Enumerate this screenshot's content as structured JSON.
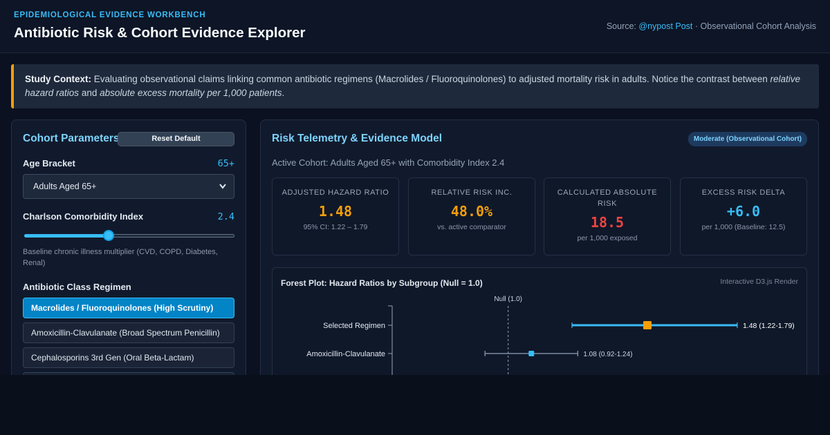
{
  "header": {
    "eyebrow": "EPIDEMIOLOGICAL EVIDENCE WORKBENCH",
    "title": "Antibiotic Risk & Cohort Evidence Explorer",
    "source_prefix": "Source:",
    "source_handle": "@nypost Post",
    "source_suffix": "· Observational Cohort Analysis"
  },
  "context": {
    "label": "Study Context:",
    "text_1": "Evaluating observational claims linking common antibiotic regimens (Macrolides / Fluoroquinolones) to adjusted mortality risk in adults. Notice the contrast between",
    "em_1": "relative hazard ratios",
    "text_2": "and",
    "em_2": "absolute excess mortality per 1,000 patients",
    "text_3": "."
  },
  "params": {
    "title": "Cohort Parameters",
    "reset_label": "Reset Default",
    "age": {
      "label": "Age Bracket",
      "value": "65+",
      "selected": "Adults Aged 65+"
    },
    "comorbidity": {
      "label": "Charlson Comorbidity Index",
      "value_text": "2.4",
      "slider_fraction": 0.4,
      "hint": "Baseline chronic illness multiplier (CVD, COPD, Diabetes, Renal)"
    },
    "regimen": {
      "label": "Antibiotic Class Regimen",
      "options": [
        "Macrolides / Fluoroquinolones (High Scrutiny)",
        "Amoxicillin-Clavulanate (Broad Spectrum Penicillin)",
        "Cephalosporins 3rd Gen (Oral Beta-Lactam)",
        ""
      ],
      "active_index": 0
    }
  },
  "telemetry": {
    "title": "Risk Telemetry & Evidence Model",
    "badge": "Moderate (Observational Cohort)",
    "active_cohort": "Active Cohort: Adults Aged 65+ with Comorbidity Index 2.4",
    "metrics": [
      {
        "label": "ADJUSTED HAZARD RATIO",
        "value": "1.48",
        "sub": "95% CI: 1.22 – 1.79",
        "color": "#f59e0b"
      },
      {
        "label": "RELATIVE RISK INC.",
        "value": "48.0%",
        "sub": "vs. active comparator",
        "color": "#f59e0b"
      },
      {
        "label": "CALCULATED ABSOLUTE RISK",
        "value": "18.5",
        "sub": "per 1,000 exposed",
        "color": "#ef4444"
      },
      {
        "label": "EXCESS RISK DELTA",
        "value": "+6.0",
        "sub": "per 1,000 (Baseline: 12.5)",
        "color": "#38bdf8"
      }
    ]
  },
  "forest": {
    "title": "Forest Plot: Hazard Ratios by Subgroup (Null = 1.0)",
    "render_note": "Interactive D3.js Render"
  },
  "chart_data": {
    "type": "scatter",
    "title": "Forest Plot: Hazard Ratios by Subgroup (Null = 1.0)",
    "null_label": "Null (1.0)",
    "null_value": 1.0,
    "x_range": [
      0.6,
      2.0
    ],
    "series": [
      {
        "label": "Selected Regimen",
        "hr": 1.48,
        "lo": 1.22,
        "hi": 1.79,
        "text": "1.48 (1.22-1.79)",
        "color": "#f59e0b",
        "line_color": "#38bdf8",
        "highlight": true
      },
      {
        "label": "Amoxicillin-Clavulanate",
        "hr": 1.08,
        "lo": 0.92,
        "hi": 1.24,
        "text": "1.08 (0.92-1.24)",
        "color": "#38bdf8",
        "line_color": "#94a3b8",
        "highlight": false
      }
    ]
  }
}
